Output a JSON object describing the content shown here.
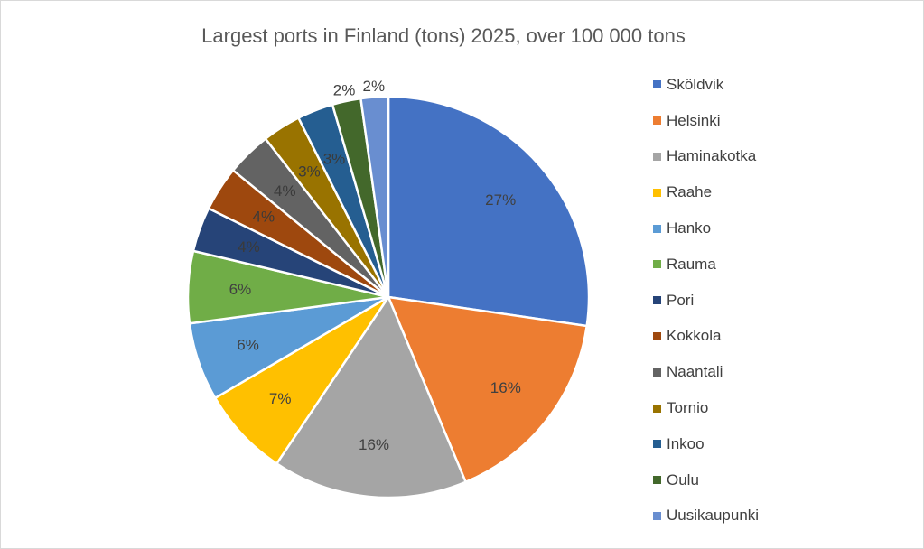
{
  "chart_data": {
    "type": "pie",
    "title": "Largest ports in Finland (tons) 2025, over 100 000 tons",
    "legend_position": "right",
    "start_angle": "12 o'clock, clockwise",
    "categories": [
      "Sköldvik",
      "Helsinki",
      "Haminakotka",
      "Raahe",
      "Hanko",
      "Rauma",
      "Pori",
      "Kokkola",
      "Naantali",
      "Tornio",
      "Inkoo",
      "Oulu",
      "Uusikaupunki"
    ],
    "values": [
      27.3,
      16.4,
      15.7,
      7.2,
      6.3,
      5.8,
      3.6,
      3.6,
      3.6,
      3.1,
      2.9,
      2.3,
      2.2
    ],
    "data_labels": [
      "27%",
      "16%",
      "16%",
      "7%",
      "6%",
      "6%",
      "4%",
      "4%",
      "4%",
      "3%",
      "3%",
      "2%",
      "2%"
    ],
    "colors": [
      "#4472C4",
      "#ED7D31",
      "#A5A5A5",
      "#FFC000",
      "#5B9BD5",
      "#70AD47",
      "#264478",
      "#9E480E",
      "#636363",
      "#997300",
      "#255E91",
      "#43682B",
      "#698ED0"
    ]
  }
}
